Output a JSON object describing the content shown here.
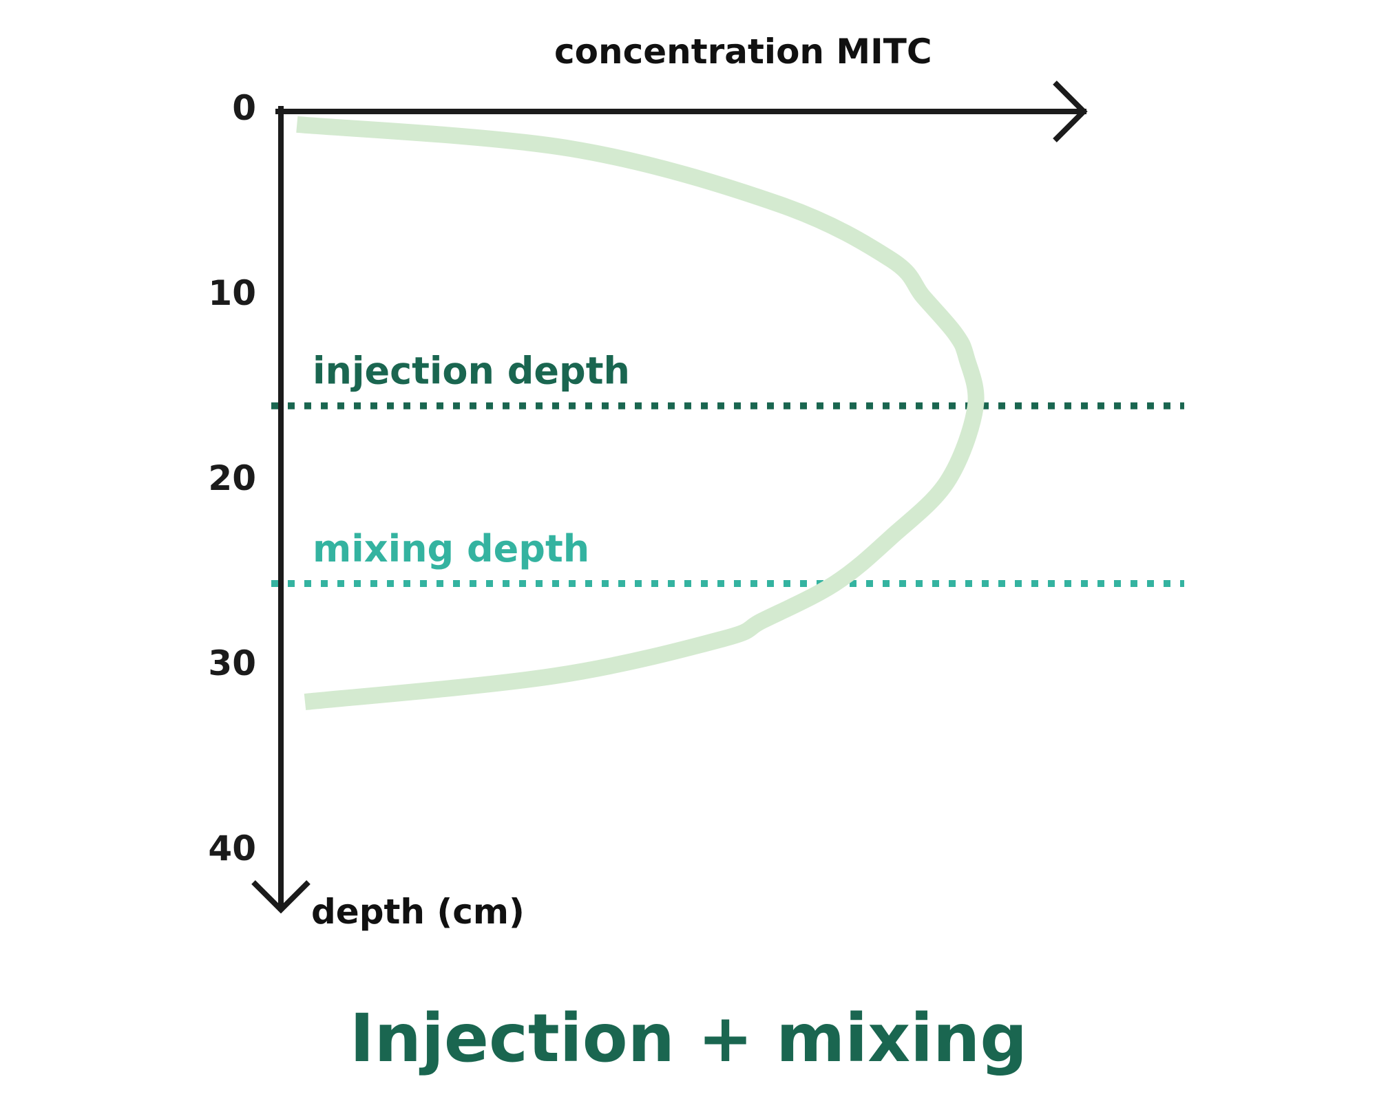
{
  "chart_data": {
    "type": "line",
    "title": "Injection + mixing",
    "xlabel": "concentration MITC",
    "ylabel": "depth (cm)",
    "y_ticks": [
      "0",
      "10",
      "20",
      "30",
      "40"
    ],
    "ylim": [
      0,
      43
    ],
    "y_inverted": true,
    "x_ticks_shown": false,
    "grid": false,
    "series": [
      {
        "depth": [
          0.7,
          2,
          5,
          8,
          10,
          12,
          13.3,
          16,
          20,
          23,
          25.5,
          27.5,
          28.5,
          30.5,
          31.9
        ],
        "concentration": [
          0.02,
          0.36,
          0.62,
          0.76,
          0.8,
          0.84,
          0.854,
          0.865,
          0.83,
          0.76,
          0.69,
          0.6,
          0.55,
          0.34,
          0.03
        ]
      }
    ],
    "reference_lines": [
      {
        "label": "injection depth",
        "depth": 15.9,
        "color": "#1a6650"
      },
      {
        "label": "mixing depth",
        "depth": 25.5,
        "color": "#34b3a0"
      }
    ],
    "colors": {
      "axis": "#1b1b1b",
      "curve": "#d4ead0",
      "title": "#1a6650"
    }
  }
}
